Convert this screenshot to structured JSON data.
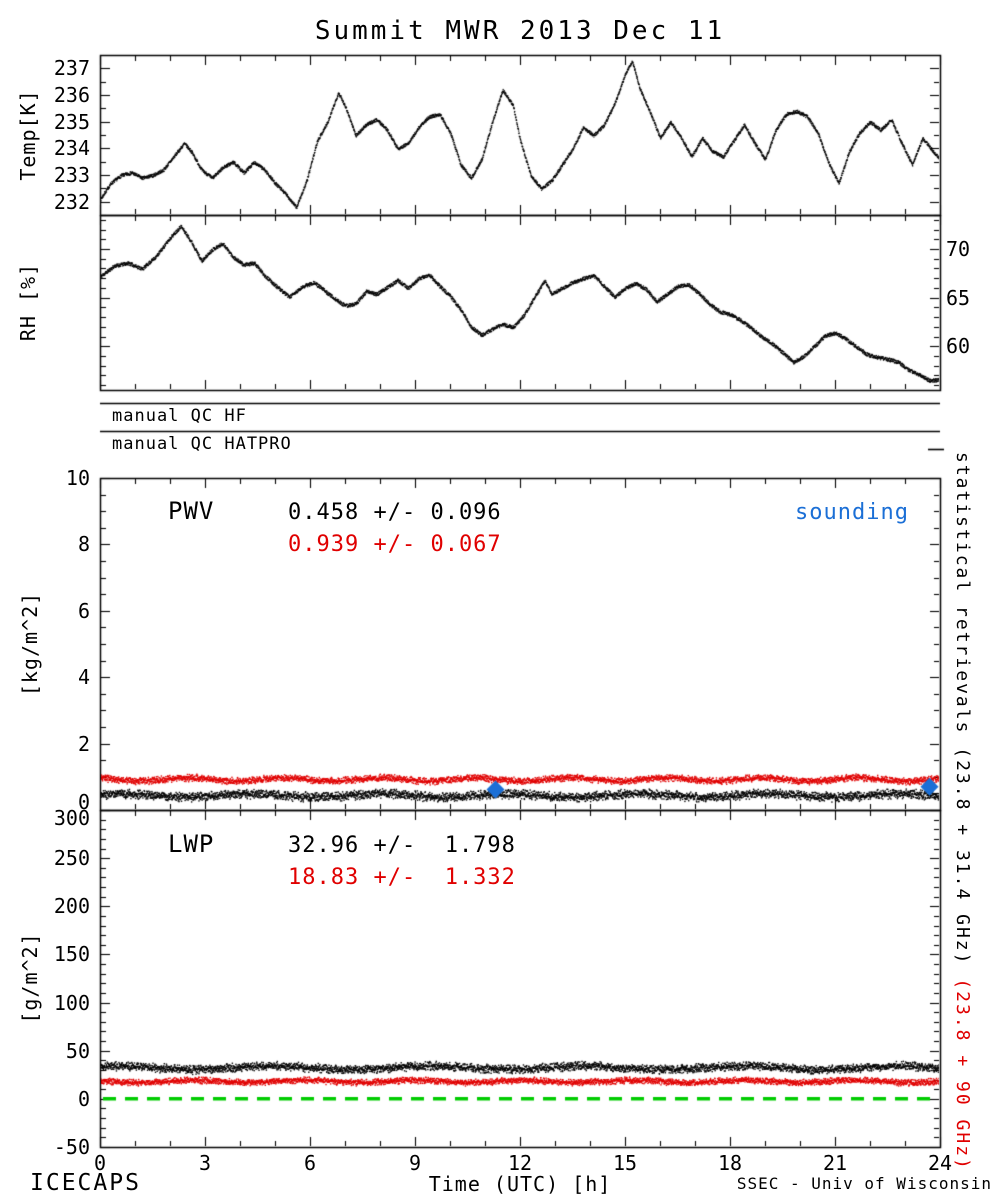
{
  "title": "Summit MWR 2013 Dec 11",
  "colors": {
    "black": "#000000",
    "red": "#e00000",
    "blue": "#1b6fd6",
    "green": "#00cc00"
  },
  "x_axis": {
    "label": "Time (UTC) [h]",
    "min": 0,
    "max": 24,
    "ticks": [
      0,
      3,
      6,
      9,
      12,
      15,
      18,
      21,
      24
    ]
  },
  "qc": {
    "rows": [
      {
        "label": "manual QC HF"
      },
      {
        "label": "manual QC HATPRO"
      }
    ]
  },
  "right_axis_text": {
    "black": "statistical retrievals (23.8 + 31.4 GHz)",
    "red": " (23.8 + 90 GHz)"
  },
  "footer": {
    "left": "ICECAPS",
    "right": "SSEC - Univ of Wisconsin"
  },
  "chart_data": [
    {
      "id": "temp",
      "type": "line",
      "style": "dotted",
      "color": "black",
      "ylabel": "Temp[K]",
      "ylim": [
        231.5,
        237.5
      ],
      "yticks": [
        232,
        233,
        234,
        235,
        236,
        237
      ],
      "ytick_side": "left",
      "points": [
        [
          0,
          232.1
        ],
        [
          0.3,
          232.7
        ],
        [
          0.6,
          233.0
        ],
        [
          0.9,
          233.1
        ],
        [
          1.2,
          232.9
        ],
        [
          1.5,
          233.0
        ],
        [
          1.8,
          233.2
        ],
        [
          2.1,
          233.7
        ],
        [
          2.4,
          234.2
        ],
        [
          2.6,
          233.9
        ],
        [
          2.9,
          233.2
        ],
        [
          3.2,
          232.9
        ],
        [
          3.5,
          233.3
        ],
        [
          3.8,
          233.5
        ],
        [
          4.1,
          233.1
        ],
        [
          4.4,
          233.5
        ],
        [
          4.7,
          233.2
        ],
        [
          5.0,
          232.7
        ],
        [
          5.3,
          232.3
        ],
        [
          5.6,
          231.8
        ],
        [
          5.9,
          232.8
        ],
        [
          6.2,
          234.3
        ],
        [
          6.5,
          235.0
        ],
        [
          6.8,
          236.1
        ],
        [
          7.0,
          235.6
        ],
        [
          7.3,
          234.5
        ],
        [
          7.6,
          234.9
        ],
        [
          7.9,
          235.1
        ],
        [
          8.2,
          234.7
        ],
        [
          8.5,
          234.0
        ],
        [
          8.8,
          234.2
        ],
        [
          9.1,
          234.8
        ],
        [
          9.4,
          235.2
        ],
        [
          9.7,
          235.3
        ],
        [
          10.0,
          234.6
        ],
        [
          10.3,
          233.4
        ],
        [
          10.6,
          232.9
        ],
        [
          10.9,
          233.6
        ],
        [
          11.2,
          235.0
        ],
        [
          11.5,
          236.2
        ],
        [
          11.8,
          235.6
        ],
        [
          12.0,
          234.3
        ],
        [
          12.3,
          233.0
        ],
        [
          12.6,
          232.5
        ],
        [
          12.9,
          232.8
        ],
        [
          13.2,
          233.4
        ],
        [
          13.5,
          234.0
        ],
        [
          13.8,
          234.8
        ],
        [
          14.1,
          234.5
        ],
        [
          14.4,
          234.9
        ],
        [
          14.7,
          235.7
        ],
        [
          15.0,
          236.8
        ],
        [
          15.2,
          237.3
        ],
        [
          15.4,
          236.3
        ],
        [
          15.7,
          235.4
        ],
        [
          16.0,
          234.4
        ],
        [
          16.3,
          235.0
        ],
        [
          16.6,
          234.4
        ],
        [
          16.9,
          233.7
        ],
        [
          17.2,
          234.4
        ],
        [
          17.5,
          233.9
        ],
        [
          17.8,
          233.7
        ],
        [
          18.1,
          234.3
        ],
        [
          18.4,
          234.9
        ],
        [
          18.7,
          234.2
        ],
        [
          19.0,
          233.6
        ],
        [
          19.3,
          234.7
        ],
        [
          19.6,
          235.3
        ],
        [
          19.9,
          235.4
        ],
        [
          20.2,
          235.2
        ],
        [
          20.5,
          234.6
        ],
        [
          20.8,
          233.5
        ],
        [
          21.1,
          232.7
        ],
        [
          21.4,
          233.9
        ],
        [
          21.7,
          234.6
        ],
        [
          22.0,
          235.0
        ],
        [
          22.3,
          234.7
        ],
        [
          22.6,
          235.1
        ],
        [
          22.9,
          234.2
        ],
        [
          23.2,
          233.4
        ],
        [
          23.5,
          234.4
        ],
        [
          23.8,
          233.9
        ],
        [
          24,
          233.6
        ]
      ]
    },
    {
      "id": "rh",
      "type": "line",
      "style": "dotted",
      "color": "black",
      "ylabel": "RH [%]",
      "ylim": [
        55.5,
        73.5
      ],
      "yticks": [
        60,
        65,
        70
      ],
      "ytick_side": "right",
      "points": [
        [
          0,
          67.2
        ],
        [
          0.4,
          68.3
        ],
        [
          0.8,
          68.6
        ],
        [
          1.2,
          68.0
        ],
        [
          1.6,
          69.3
        ],
        [
          2.0,
          71.2
        ],
        [
          2.3,
          72.4
        ],
        [
          2.6,
          70.8
        ],
        [
          2.9,
          68.8
        ],
        [
          3.2,
          70.0
        ],
        [
          3.5,
          70.6
        ],
        [
          3.8,
          69.2
        ],
        [
          4.1,
          68.4
        ],
        [
          4.4,
          68.6
        ],
        [
          4.7,
          67.3
        ],
        [
          5.0,
          66.3
        ],
        [
          5.4,
          65.1
        ],
        [
          5.8,
          66.2
        ],
        [
          6.1,
          66.6
        ],
        [
          6.4,
          65.8
        ],
        [
          6.7,
          64.9
        ],
        [
          7.0,
          64.2
        ],
        [
          7.3,
          64.4
        ],
        [
          7.6,
          65.7
        ],
        [
          7.9,
          65.4
        ],
        [
          8.2,
          66.1
        ],
        [
          8.5,
          66.8
        ],
        [
          8.8,
          66.0
        ],
        [
          9.1,
          67.0
        ],
        [
          9.4,
          67.4
        ],
        [
          9.7,
          66.2
        ],
        [
          10.0,
          65.2
        ],
        [
          10.3,
          63.8
        ],
        [
          10.6,
          62.0
        ],
        [
          10.9,
          61.2
        ],
        [
          11.2,
          61.8
        ],
        [
          11.5,
          62.3
        ],
        [
          11.8,
          62.0
        ],
        [
          12.1,
          63.2
        ],
        [
          12.4,
          65.0
        ],
        [
          12.7,
          66.8
        ],
        [
          12.9,
          65.4
        ],
        [
          13.2,
          66.0
        ],
        [
          13.5,
          66.6
        ],
        [
          13.8,
          67.0
        ],
        [
          14.1,
          67.3
        ],
        [
          14.4,
          66.2
        ],
        [
          14.7,
          65.1
        ],
        [
          15.0,
          66.0
        ],
        [
          15.3,
          66.5
        ],
        [
          15.6,
          65.9
        ],
        [
          15.9,
          64.6
        ],
        [
          16.2,
          65.4
        ],
        [
          16.5,
          66.2
        ],
        [
          16.8,
          66.4
        ],
        [
          17.1,
          65.5
        ],
        [
          17.4,
          64.4
        ],
        [
          17.7,
          63.6
        ],
        [
          18.0,
          63.3
        ],
        [
          18.3,
          62.7
        ],
        [
          18.6,
          61.9
        ],
        [
          18.9,
          61.0
        ],
        [
          19.2,
          60.3
        ],
        [
          19.5,
          59.4
        ],
        [
          19.8,
          58.4
        ],
        [
          20.1,
          59.0
        ],
        [
          20.4,
          60.0
        ],
        [
          20.7,
          61.1
        ],
        [
          21.0,
          61.4
        ],
        [
          21.3,
          60.8
        ],
        [
          21.6,
          60.0
        ],
        [
          21.9,
          59.2
        ],
        [
          22.2,
          58.9
        ],
        [
          22.5,
          58.7
        ],
        [
          22.8,
          58.4
        ],
        [
          23.1,
          57.6
        ],
        [
          23.4,
          57.1
        ],
        [
          23.7,
          56.5
        ],
        [
          24,
          56.6
        ]
      ]
    },
    {
      "id": "pwv",
      "type": "line",
      "ylabel": "[kg/m^2]",
      "ylim": [
        0,
        10
      ],
      "yticks": [
        0,
        2,
        4,
        6,
        8,
        10
      ],
      "ytick_side": "left",
      "series": [
        {
          "name": "PWV statistical retrieval (23.8 + 31.4 GHz)",
          "color": "black",
          "mean": 0.458,
          "sigma": 0.096
        },
        {
          "name": "PWV statistical retrieval (23.8 + 90 GHz)",
          "color": "red",
          "mean": 0.939,
          "sigma": 0.067
        }
      ],
      "labels": {
        "title": "PWV",
        "black_stats": "0.458 +/- 0.096",
        "red_stats": "0.939 +/- 0.067",
        "legend": "sounding"
      },
      "sounding_markers": [
        {
          "x": 11.3,
          "y": 0.62
        },
        {
          "x": 23.7,
          "y": 0.7
        }
      ]
    },
    {
      "id": "lwp",
      "type": "line",
      "ylabel": "[g/m^2]",
      "ylim": [
        -50,
        300
      ],
      "yticks": [
        -50,
        0,
        50,
        100,
        150,
        200,
        250,
        300
      ],
      "ytick_side": "left",
      "series": [
        {
          "name": "LWP statistical retrieval (23.8 + 31.4 GHz)",
          "color": "black",
          "mean": 32.96,
          "sigma": 1.798
        },
        {
          "name": "LWP statistical retrieval (23.8 + 90 GHz)",
          "color": "red",
          "mean": 18.83,
          "sigma": 1.332
        }
      ],
      "labels": {
        "title": "LWP",
        "black_stats": "32.96 +/-  1.798",
        "red_stats": "18.83 +/-  1.332"
      },
      "zero_line": {
        "value": 0,
        "color": "green",
        "style": "dashed"
      }
    }
  ]
}
